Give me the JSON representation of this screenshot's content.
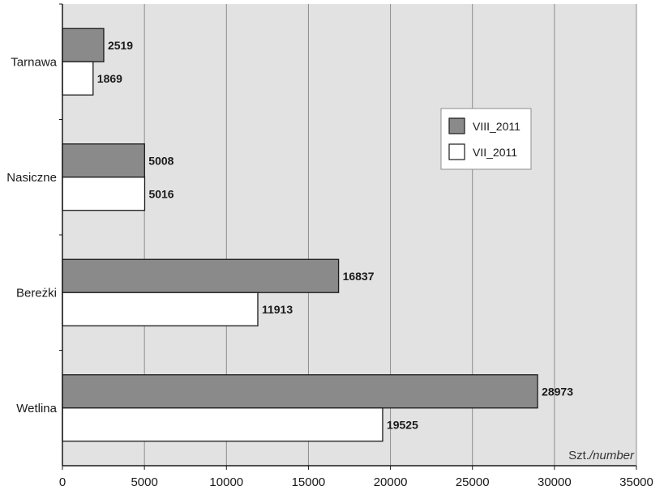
{
  "colors": {
    "plot_bg": "#e2e2e2",
    "grid": "#8c8c8c",
    "series_dark": "#8a8a8a",
    "series_light": "#ffffff",
    "bar_stroke": "#1a1a1a",
    "axis": "#1a1a1a"
  },
  "chart_data": {
    "type": "bar",
    "orientation": "horizontal",
    "categories": [
      "Tarnawa",
      "Nasiczne",
      "Bereżki",
      "Wetlina"
    ],
    "series": [
      {
        "name": "VIII_2011",
        "values": [
          2519,
          5008,
          16837,
          28973
        ],
        "color": "#8a8a8a"
      },
      {
        "name": "VII_2011",
        "values": [
          1869,
          5016,
          11913,
          19525
        ],
        "color": "#ffffff"
      }
    ],
    "xlim": [
      0,
      35000
    ],
    "x_ticks": [
      0,
      5000,
      10000,
      15000,
      20000,
      25000,
      30000,
      35000
    ],
    "unit_label": {
      "prefix": "Szt.",
      "italic": "/number"
    },
    "grid": true,
    "legend_position": "right"
  }
}
